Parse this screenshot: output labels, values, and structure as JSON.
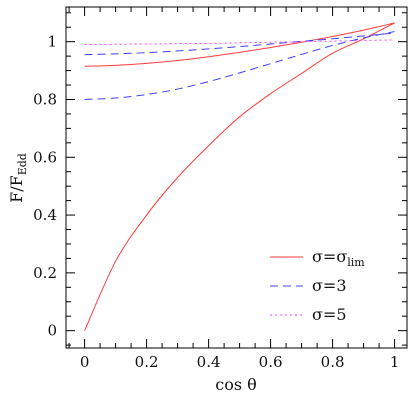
{
  "chart_data": {
    "type": "line",
    "title": "",
    "xlabel": "cos θ",
    "ylabel": "F/F_Edd",
    "xlim": [
      -0.06,
      1.04
    ],
    "ylim": [
      -0.06,
      1.12
    ],
    "xticks": [
      "0",
      "0.2",
      "0.4",
      "0.6",
      "0.8",
      "1"
    ],
    "yticks": [
      "0",
      "0.2",
      "0.4",
      "0.6",
      "0.8",
      "1"
    ],
    "grid": false,
    "legend_position": "bottom-right",
    "colors": {
      "red": "#ff3b3b",
      "blue": "#4040ff",
      "magenta": "#ff40ff"
    },
    "x": [
      0,
      0.1,
      0.2,
      0.3,
      0.4,
      0.5,
      0.6,
      0.7,
      0.8,
      0.9,
      1.0
    ],
    "series": [
      {
        "name": "σ=σ_lim",
        "legend_label": {
          "base": "σ=σ",
          "sub": "lim"
        },
        "color": "red",
        "style": "solid",
        "values": [
          0.0,
          0.24,
          0.4,
          0.53,
          0.64,
          0.74,
          0.82,
          0.89,
          0.96,
          1.01,
          1.065
        ]
      },
      {
        "name": "σ=σ_lim",
        "color": "red",
        "style": "solid",
        "values": [
          0.915,
          0.918,
          0.925,
          0.935,
          0.948,
          0.963,
          0.98,
          0.998,
          1.018,
          1.04,
          1.065
        ]
      },
      {
        "name": "σ=3",
        "legend_label": {
          "base": "σ=3",
          "sub": ""
        },
        "color": "blue",
        "style": "dashed",
        "values": [
          0.8,
          0.805,
          0.817,
          0.836,
          0.862,
          0.892,
          0.924,
          0.956,
          0.987,
          1.013,
          1.035
        ]
      },
      {
        "name": "σ=3",
        "color": "blue",
        "style": "dashed",
        "values": [
          0.955,
          0.958,
          0.962,
          0.968,
          0.975,
          0.983,
          0.992,
          1.001,
          1.01,
          1.02,
          1.03
        ]
      },
      {
        "name": "σ=5",
        "legend_label": {
          "base": "σ=5",
          "sub": ""
        },
        "color": "magenta",
        "style": "dotted",
        "values": [
          0.99,
          0.991,
          0.992,
          0.993,
          0.994,
          0.996,
          0.998,
          1.0,
          1.002,
          1.004,
          1.006
        ]
      }
    ]
  }
}
